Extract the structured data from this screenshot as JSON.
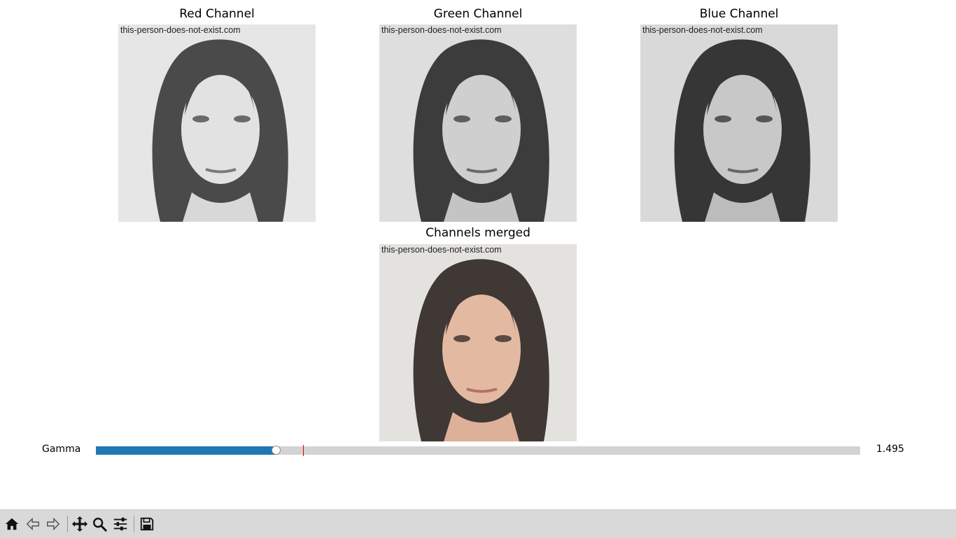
{
  "panels": [
    {
      "title": "Red Channel",
      "watermark": "this-person-does-not-exist.com",
      "mode": "gray"
    },
    {
      "title": "Green Channel",
      "watermark": "this-person-does-not-exist.com",
      "mode": "gray"
    },
    {
      "title": "Blue Channel",
      "watermark": "this-person-does-not-exist.com",
      "mode": "gray"
    },
    {
      "title": "Channels merged",
      "watermark": "this-person-does-not-exist.com",
      "mode": "color"
    }
  ],
  "slider": {
    "label": "Gamma",
    "value_text": "1.495",
    "fraction": 0.236,
    "initial_fraction": 0.271,
    "accent": "#1f77b4",
    "track": "#d3d3d3",
    "marker": "#e00000"
  },
  "toolbar": {
    "buttons": [
      {
        "icon": "home-icon"
      },
      {
        "icon": "back-arrow-icon"
      },
      {
        "icon": "forward-arrow-icon"
      },
      {
        "icon": "pan-icon"
      },
      {
        "icon": "zoom-icon"
      },
      {
        "icon": "configure-subplots-icon"
      },
      {
        "icon": "save-icon"
      }
    ]
  }
}
